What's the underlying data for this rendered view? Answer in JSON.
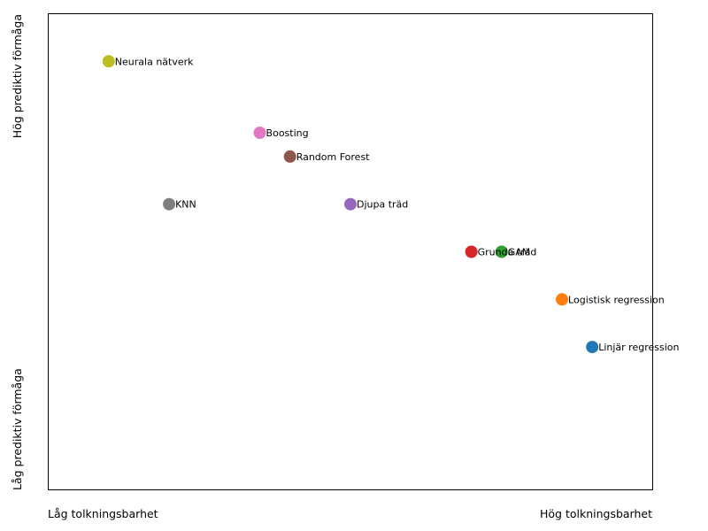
{
  "chart_data": {
    "type": "scatter",
    "title": "",
    "xlabel": "",
    "ylabel": "",
    "xlim": [
      0,
      10
    ],
    "ylim": [
      0,
      10
    ],
    "grid": false,
    "x_low_label": "Låg tolkningsbarhet",
    "x_high_label": "Hög tolkningsbarhet",
    "y_low_label": "Låg prediktiv förmåga",
    "y_high_label": "Hög prediktiv förmåga",
    "points": [
      {
        "label": "Linjär regression",
        "x": 9.0,
        "y": 3.0,
        "color": "#1f77b4"
      },
      {
        "label": "Logistisk regression",
        "x": 8.5,
        "y": 4.0,
        "color": "#ff7f0e"
      },
      {
        "label": "GAM",
        "x": 7.5,
        "y": 5.0,
        "color": "#2ca02c"
      },
      {
        "label": "Grunda träd",
        "x": 7.0,
        "y": 5.0,
        "color": "#d62728"
      },
      {
        "label": "Djupa träd",
        "x": 5.0,
        "y": 6.0,
        "color": "#9467bd"
      },
      {
        "label": "Random Forest",
        "x": 4.0,
        "y": 7.0,
        "color": "#8c564b"
      },
      {
        "label": "Boosting",
        "x": 3.5,
        "y": 7.5,
        "color": "#e377c2"
      },
      {
        "label": "KNN",
        "x": 2.0,
        "y": 6.0,
        "color": "#7f7f7f"
      },
      {
        "label": "Neurala nätverk",
        "x": 1.0,
        "y": 9.0,
        "color": "#bcbd22"
      }
    ]
  }
}
